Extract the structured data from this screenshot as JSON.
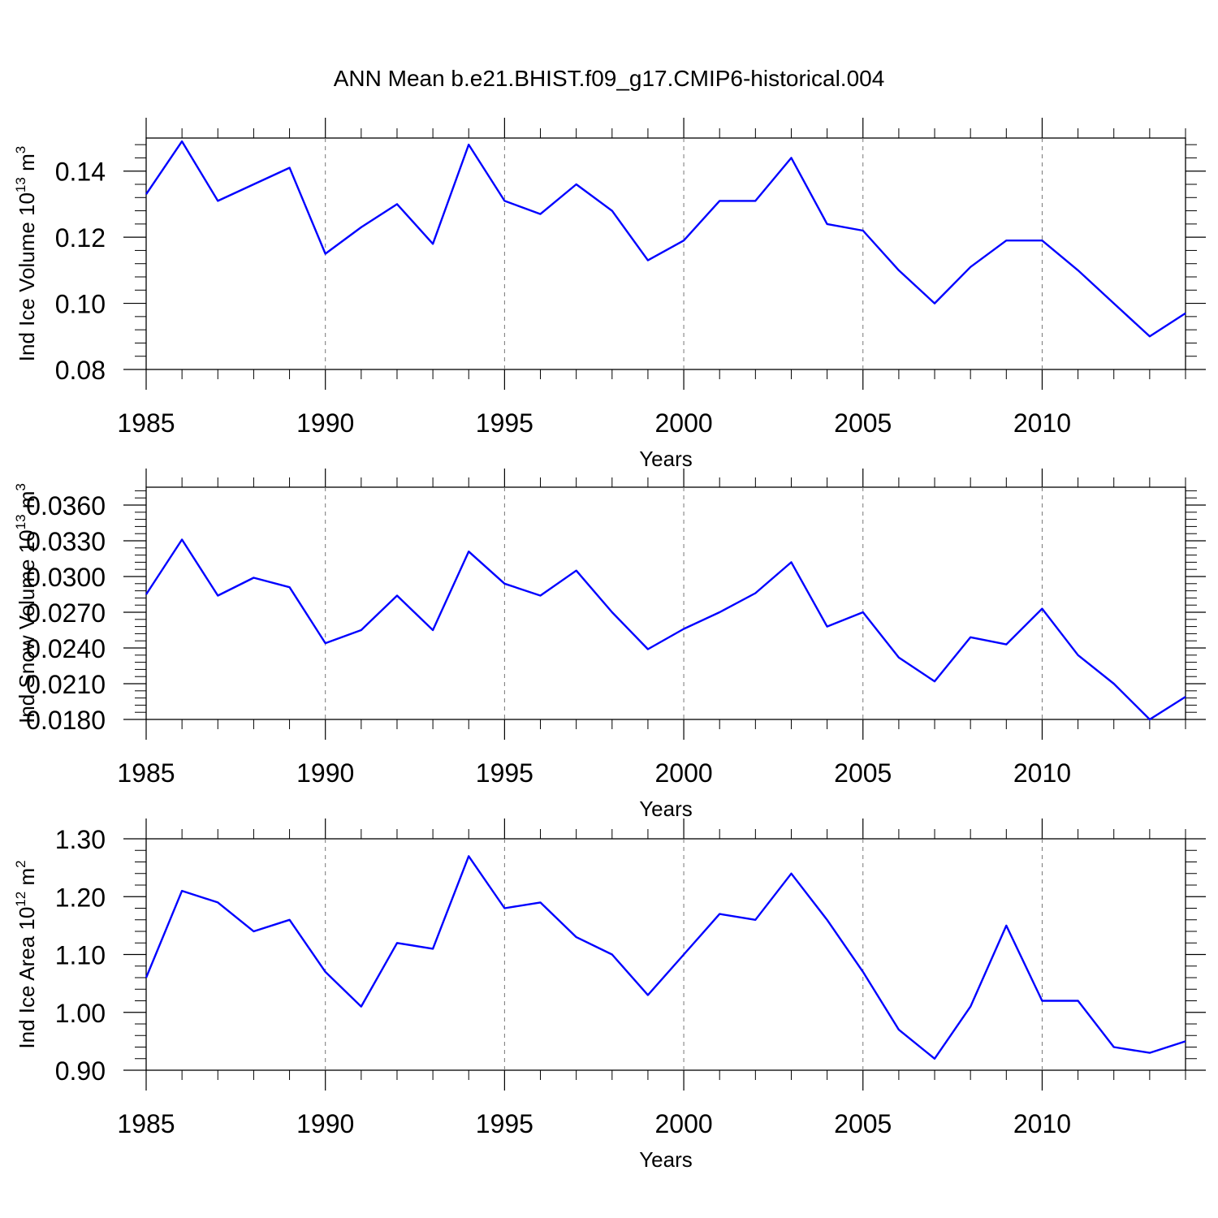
{
  "title": "ANN Mean b.e21.BHIST.f09_g17.CMIP6-historical.004",
  "line_color": "#0000ff",
  "chart_data": [
    {
      "type": "line",
      "ylabel": "Ind Ice Volume 10",
      "ylabel_exp": "13",
      "ylabel_unit": " m",
      "ylabel_unit_exp": "3",
      "xlabel": "Years",
      "xlim": [
        1985,
        2014
      ],
      "ylim": [
        0.08,
        0.15
      ],
      "yticks": [
        0.08,
        0.1,
        0.12,
        0.14
      ],
      "ytick_labels": [
        "0.08",
        "0.10",
        "0.12",
        "0.14"
      ],
      "xticks": [
        1985,
        1990,
        1995,
        2000,
        2005,
        2010
      ],
      "xtick_labels": [
        "1985",
        "1990",
        "1995",
        "2000",
        "2005",
        "2010"
      ],
      "x": [
        1985,
        1986,
        1987,
        1988,
        1989,
        1990,
        1991,
        1992,
        1993,
        1994,
        1995,
        1996,
        1997,
        1998,
        1999,
        2000,
        2001,
        2002,
        2003,
        2004,
        2005,
        2006,
        2007,
        2008,
        2009,
        2010,
        2011,
        2012,
        2013,
        2014
      ],
      "values": [
        0.133,
        0.149,
        0.131,
        0.136,
        0.141,
        0.115,
        0.123,
        0.13,
        0.118,
        0.148,
        0.131,
        0.127,
        0.136,
        0.128,
        0.113,
        0.119,
        0.131,
        0.131,
        0.144,
        0.124,
        0.122,
        0.11,
        0.1,
        0.111,
        0.119,
        0.119,
        0.11,
        0.1,
        0.09,
        0.097
      ]
    },
    {
      "type": "line",
      "ylabel": "Ind Snow Volume 10",
      "ylabel_exp": "13",
      "ylabel_unit": " m",
      "ylabel_unit_exp": "3",
      "xlabel": "Years",
      "xlim": [
        1985,
        2014
      ],
      "ylim": [
        0.018,
        0.0375
      ],
      "yticks": [
        0.018,
        0.021,
        0.024,
        0.027,
        0.03,
        0.033,
        0.036
      ],
      "ytick_labels": [
        "0.0180",
        "0.0210",
        "0.0240",
        "0.0270",
        "0.0300",
        "0.0330",
        "0.0360"
      ],
      "xticks": [
        1985,
        1990,
        1995,
        2000,
        2005,
        2010
      ],
      "xtick_labels": [
        "1985",
        "1990",
        "1995",
        "2000",
        "2005",
        "2010"
      ],
      "x": [
        1985,
        1986,
        1987,
        1988,
        1989,
        1990,
        1991,
        1992,
        1993,
        1994,
        1995,
        1996,
        1997,
        1998,
        1999,
        2000,
        2001,
        2002,
        2003,
        2004,
        2005,
        2006,
        2007,
        2008,
        2009,
        2010,
        2011,
        2012,
        2013,
        2014
      ],
      "values": [
        0.0285,
        0.0331,
        0.0284,
        0.0299,
        0.0291,
        0.0244,
        0.0255,
        0.0284,
        0.0255,
        0.0321,
        0.0294,
        0.0284,
        0.0305,
        0.027,
        0.0239,
        0.0256,
        0.027,
        0.0286,
        0.0312,
        0.0258,
        0.027,
        0.0232,
        0.0212,
        0.0249,
        0.0243,
        0.0273,
        0.0234,
        0.021,
        0.018,
        0.0199
      ]
    },
    {
      "type": "line",
      "ylabel": "Ind Ice Area 10",
      "ylabel_exp": "12",
      "ylabel_unit": " m",
      "ylabel_unit_exp": "2",
      "xlabel": "Years",
      "xlim": [
        1985,
        2014
      ],
      "ylim": [
        0.9,
        1.3
      ],
      "yticks": [
        0.9,
        1.0,
        1.1,
        1.2,
        1.3
      ],
      "ytick_labels": [
        "0.90",
        "1.00",
        "1.10",
        "1.20",
        "1.30"
      ],
      "xticks": [
        1985,
        1990,
        1995,
        2000,
        2005,
        2010
      ],
      "xtick_labels": [
        "1985",
        "1990",
        "1995",
        "2000",
        "2005",
        "2010"
      ],
      "x": [
        1985,
        1986,
        1987,
        1988,
        1989,
        1990,
        1991,
        1992,
        1993,
        1994,
        1995,
        1996,
        1997,
        1998,
        1999,
        2000,
        2001,
        2002,
        2003,
        2004,
        2005,
        2006,
        2007,
        2008,
        2009,
        2010,
        2011,
        2012,
        2013,
        2014
      ],
      "values": [
        1.06,
        1.21,
        1.19,
        1.14,
        1.16,
        1.07,
        1.01,
        1.12,
        1.11,
        1.27,
        1.18,
        1.19,
        1.13,
        1.1,
        1.03,
        1.1,
        1.17,
        1.16,
        1.24,
        1.16,
        1.07,
        0.97,
        0.92,
        1.01,
        1.15,
        1.02,
        1.02,
        0.94,
        0.93,
        0.95
      ]
    }
  ]
}
